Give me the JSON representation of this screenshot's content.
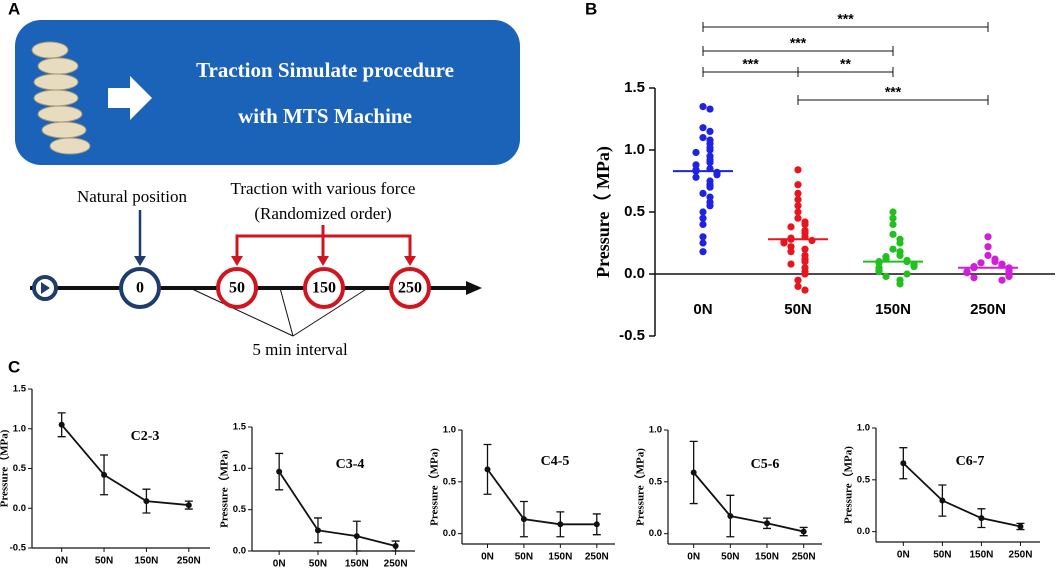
{
  "panel_labels": [
    "A",
    "B",
    "C"
  ],
  "diagram": {
    "title_lines": [
      "Traction Simulate procedure",
      "with MTS Machine"
    ],
    "natural_label": "Natural position",
    "force_label": "Traction with various force",
    "order_label": "(Randomized order)",
    "interval_label": "5 min interval",
    "nodes": [
      "0",
      "50",
      "150",
      "250"
    ]
  },
  "chart_data": [
    {
      "type": "strip",
      "ylabel": "Pressure（ MPa)",
      "categories": [
        "0N",
        "50N",
        "150N",
        "250N"
      ],
      "series": [
        {
          "color": "#1f22e0",
          "median": 0.83,
          "values": [
            1.35,
            1.33,
            1.18,
            1.15,
            1.1,
            1.08,
            1.05,
            1.02,
            1.0,
            0.98,
            0.95,
            0.92,
            0.9,
            0.88,
            0.85,
            0.84,
            0.83,
            0.82,
            0.8,
            0.78,
            0.75,
            0.72,
            0.7,
            0.65,
            0.62,
            0.58,
            0.55,
            0.5,
            0.45,
            0.4,
            0.3,
            0.25,
            0.18
          ]
        },
        {
          "color": "#e8141e",
          "median": 0.28,
          "values": [
            0.84,
            0.72,
            0.65,
            0.6,
            0.55,
            0.5,
            0.45,
            0.42,
            0.4,
            0.38,
            0.35,
            0.33,
            0.3,
            0.29,
            0.28,
            0.27,
            0.26,
            0.25,
            0.22,
            0.2,
            0.18,
            0.15,
            0.12,
            0.1,
            0.08,
            0.05,
            0.02,
            0.0,
            -0.05,
            -0.1,
            -0.13
          ]
        },
        {
          "color": "#22c01e",
          "median": 0.1,
          "values": [
            0.5,
            0.45,
            0.4,
            0.32,
            0.28,
            0.25,
            0.2,
            0.18,
            0.15,
            0.14,
            0.12,
            0.11,
            0.1,
            0.1,
            0.09,
            0.08,
            0.07,
            0.06,
            0.05,
            0.04,
            0.03,
            0.02,
            0.0,
            -0.02,
            -0.05,
            -0.08
          ]
        },
        {
          "color": "#d21ed8",
          "median": 0.05,
          "values": [
            0.3,
            0.22,
            0.15,
            0.12,
            0.1,
            0.09,
            0.08,
            0.07,
            0.06,
            0.05,
            0.05,
            0.04,
            0.03,
            0.02,
            0.02,
            0.01,
            0.0,
            -0.01,
            -0.02,
            -0.03,
            -0.05
          ]
        }
      ],
      "ylim": [
        -0.5,
        1.5
      ],
      "yticks": [
        -0.5,
        {
          "value": 0,
          "label": "0.0"
        },
        0.5,
        {
          "value": 1,
          "label": "1.0"
        },
        1.5
      ],
      "comparisons": [
        {
          "from": "0N",
          "to": "250N",
          "label": "***"
        },
        {
          "from": "0N",
          "to": "150N",
          "label": "***"
        },
        {
          "from": "0N",
          "to": "50N",
          "label": "***"
        },
        {
          "from": "50N",
          "to": "150N",
          "label": "**"
        },
        {
          "from": "50N",
          "to": "250N",
          "label": "***"
        }
      ]
    },
    {
      "type": "line",
      "title": "C2-3",
      "ylabel": "Pressure（MPa)",
      "categories": [
        "0N",
        "50N",
        "150N",
        "250N"
      ],
      "values": [
        1.05,
        0.42,
        0.09,
        0.04
      ],
      "errors": [
        0.15,
        0.25,
        0.15,
        0.05
      ],
      "ylim": [
        -0.5,
        1.5
      ],
      "yticks": [
        -0.5,
        {
          "value": 0,
          "label": "0.0"
        },
        0.5,
        {
          "value": 1,
          "label": "1.0"
        },
        1.5
      ]
    },
    {
      "type": "line",
      "title": "C3-4",
      "ylabel": "Pressure（MPa)",
      "categories": [
        "0N",
        "50N",
        "150N",
        "250N"
      ],
      "values": [
        0.96,
        0.25,
        0.18,
        0.06
      ],
      "errors": [
        0.22,
        0.15,
        0.18,
        0.06
      ],
      "ylim": [
        0,
        1.5
      ],
      "yticks": [
        {
          "value": 0,
          "label": "0.0"
        },
        0.5,
        {
          "value": 1,
          "label": "1.0"
        },
        1.5
      ]
    },
    {
      "type": "line",
      "title": "C4-5",
      "ylabel": "Pressure（MPa)",
      "categories": [
        "0N",
        "50N",
        "150N",
        "250N"
      ],
      "values": [
        0.62,
        0.14,
        0.09,
        0.09
      ],
      "errors": [
        0.24,
        0.17,
        0.12,
        0.1
      ],
      "ylim": [
        -0.1,
        1.0
      ],
      "yticks": [
        {
          "value": 0,
          "label": "0.0"
        },
        0.5,
        {
          "value": 1,
          "label": "1.0"
        }
      ]
    },
    {
      "type": "line",
      "title": "C5-6",
      "ylabel": "Pressure（MPa)",
      "categories": [
        "0N",
        "50N",
        "150N",
        "250N"
      ],
      "values": [
        0.59,
        0.17,
        0.1,
        0.02
      ],
      "errors": [
        0.3,
        0.2,
        0.05,
        0.04
      ],
      "ylim": [
        -0.1,
        1.0
      ],
      "yticks": [
        {
          "value": 0,
          "label": "0.0"
        },
        0.5,
        {
          "value": 1,
          "label": "1.0"
        }
      ]
    },
    {
      "type": "line",
      "title": "C6-7",
      "ylabel": "Pressure（MPa)",
      "categories": [
        "0N",
        "50N",
        "150N",
        "250N"
      ],
      "values": [
        0.66,
        0.3,
        0.13,
        0.05
      ],
      "errors": [
        0.15,
        0.15,
        0.09,
        0.03
      ],
      "ylim": [
        -0.1,
        1.0
      ],
      "yticks": [
        {
          "value": 0,
          "label": "0.0"
        },
        0.5,
        {
          "value": 1,
          "label": "1.0"
        }
      ]
    }
  ]
}
